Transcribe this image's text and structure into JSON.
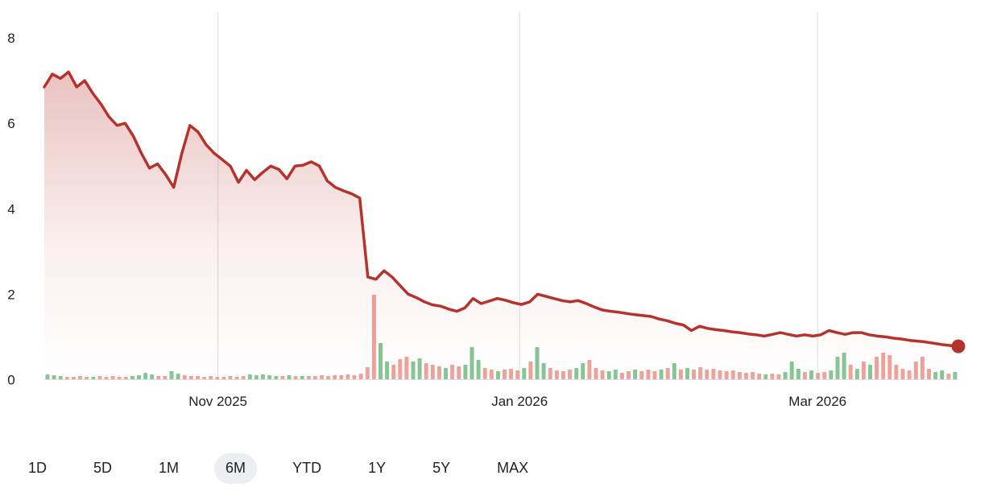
{
  "chart_data": {
    "type": "line",
    "title": "",
    "xlabel": "",
    "ylabel": "",
    "y_ticks": [
      0,
      2,
      4,
      6,
      8
    ],
    "ylim": [
      0,
      8.5
    ],
    "grid": "vertical-only",
    "legend": "none",
    "x_ticks": [
      {
        "label": "Nov 2025",
        "pos": 0.19
      },
      {
        "label": "Jan 2026",
        "pos": 0.52
      },
      {
        "label": "Mar 2026",
        "pos": 0.846
      }
    ],
    "price_series": [
      6.85,
      7.15,
      7.05,
      7.2,
      6.85,
      7.0,
      6.7,
      6.45,
      6.15,
      5.95,
      6.0,
      5.7,
      5.3,
      4.95,
      5.05,
      4.8,
      4.5,
      5.3,
      5.95,
      5.8,
      5.5,
      5.3,
      5.15,
      5.0,
      4.62,
      4.9,
      4.68,
      4.85,
      5.0,
      4.92,
      4.7,
      5.0,
      5.02,
      5.1,
      5.0,
      4.65,
      4.5,
      4.42,
      4.35,
      4.25,
      2.4,
      2.35,
      2.55,
      2.4,
      2.2,
      2.0,
      1.92,
      1.82,
      1.75,
      1.72,
      1.65,
      1.6,
      1.68,
      1.9,
      1.78,
      1.84,
      1.9,
      1.86,
      1.8,
      1.76,
      1.82,
      2.0,
      1.95,
      1.9,
      1.85,
      1.82,
      1.85,
      1.78,
      1.7,
      1.63,
      1.6,
      1.58,
      1.55,
      1.52,
      1.5,
      1.48,
      1.42,
      1.38,
      1.32,
      1.28,
      1.15,
      1.25,
      1.2,
      1.17,
      1.15,
      1.12,
      1.1,
      1.07,
      1.05,
      1.02,
      1.06,
      1.1,
      1.06,
      1.02,
      1.05,
      1.02,
      1.05,
      1.15,
      1.1,
      1.06,
      1.1,
      1.1,
      1.05,
      1.02,
      1.0,
      0.97,
      0.95,
      0.92,
      0.9,
      0.88,
      0.85,
      0.82,
      0.8,
      0.78
    ],
    "last_price": 0.78,
    "volume_series": [
      6,
      5,
      4,
      3,
      3,
      4,
      3,
      3,
      4,
      3,
      4,
      3,
      3,
      4,
      5,
      8,
      6,
      4,
      4,
      10,
      7,
      5,
      4,
      4,
      3,
      4,
      3,
      3,
      4,
      3,
      4,
      6,
      5,
      6,
      5,
      4,
      4,
      5,
      4,
      4,
      4,
      4,
      5,
      4,
      5,
      5,
      6,
      5,
      7,
      15,
      105,
      45,
      22,
      18,
      25,
      28,
      22,
      26,
      20,
      18,
      16,
      14,
      18,
      16,
      18,
      40,
      24,
      14,
      12,
      10,
      12,
      13,
      11,
      14,
      22,
      40,
      20,
      14,
      11,
      10,
      12,
      14,
      20,
      24,
      14,
      11,
      10,
      12,
      8,
      10,
      12,
      10,
      12,
      10,
      12,
      14,
      20,
      12,
      14,
      12,
      15,
      12,
      13,
      11,
      10,
      11,
      9,
      8,
      9,
      7,
      6,
      7,
      6,
      9,
      22,
      13,
      9,
      11,
      8,
      9,
      11,
      28,
      33,
      18,
      13,
      22,
      18,
      28,
      33,
      30,
      18,
      13,
      11,
      22,
      28,
      13,
      9,
      11,
      7,
      9
    ],
    "volume_direction": [
      "gggrrrrgrr",
      "rrrggggrrg",
      "grrrrrrrrr",
      "rgggggrgrg",
      "rrrrrrrrrr",
      "rggrrrggrr",
      "rgrrgggrrg",
      "rrrgrggrrr",
      "rggrrrggrr",
      "grrrgrgrgr",
      "rrrrrrrrrr",
      "grrgggrgrr",
      "gggrgrgrrr",
      "rrrrrrggrg"
    ],
    "colors": {
      "line": "#b5332c",
      "volume_up": "#86c694",
      "volume_down": "#eda29b",
      "gridline": "#dadce0",
      "axis_text": "#202124"
    },
    "endpoint_marker": true
  },
  "range_selector": {
    "options": [
      "1D",
      "5D",
      "1M",
      "6M",
      "YTD",
      "1Y",
      "5Y",
      "MAX"
    ],
    "selected": "6M"
  }
}
